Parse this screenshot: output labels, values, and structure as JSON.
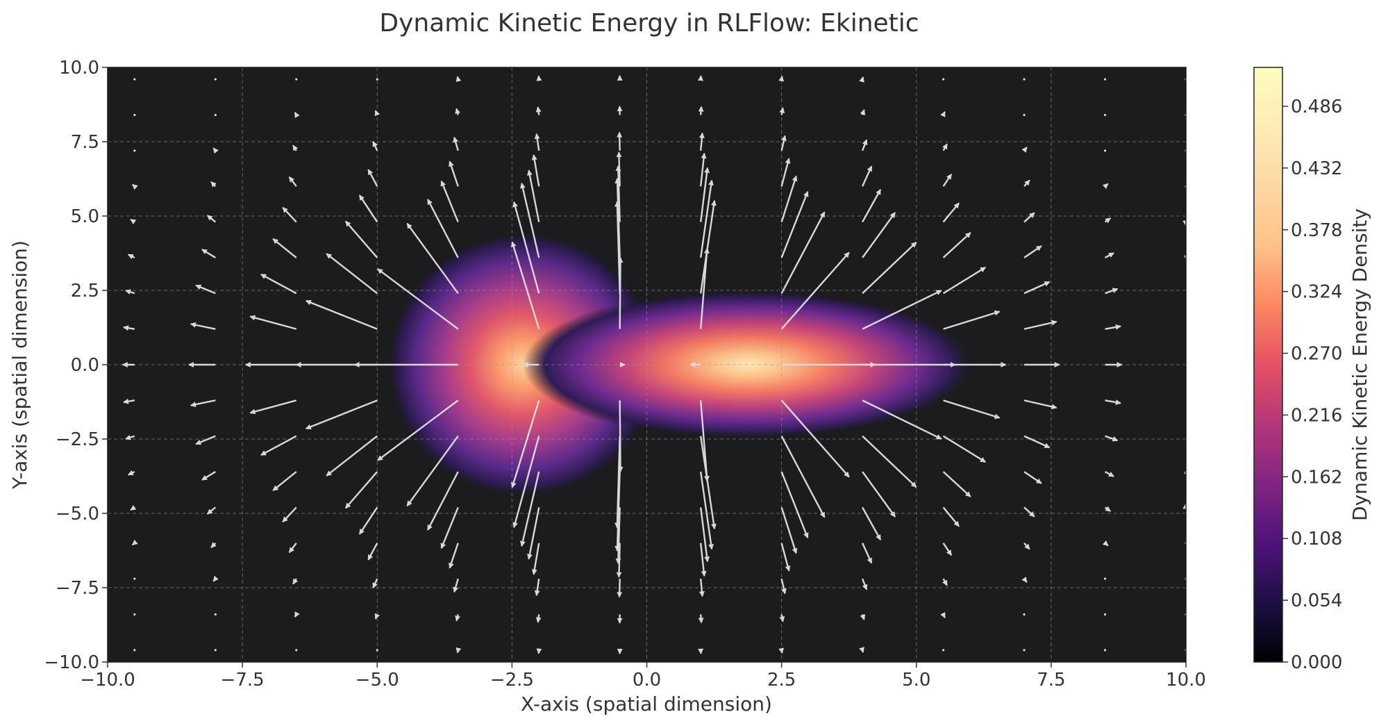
{
  "chart_data": {
    "type": "heatmap",
    "subtype": "contour-fill with quiver vector field",
    "title": "Dynamic Kinetic Energy in RLFlow: Ekinetic",
    "xlabel": "X-axis (spatial dimension)",
    "ylabel": "Y-axis (spatial dimension)",
    "xlim": [
      -10,
      10
    ],
    "ylim": [
      -10,
      10
    ],
    "xticks": [
      -10,
      -7.5,
      -5,
      -2.5,
      0,
      2.5,
      5,
      7.5,
      10
    ],
    "yticks": [
      -10,
      -7.5,
      -5,
      -2.5,
      0,
      2.5,
      5,
      7.5,
      10
    ],
    "xtick_labels": [
      "−10.0",
      "−7.5",
      "−5.0",
      "−2.5",
      "0.0",
      "2.5",
      "5.0",
      "7.5",
      "10.0"
    ],
    "ytick_labels": [
      "−10.0",
      "−7.5",
      "−5.0",
      "−2.5",
      "0.0",
      "2.5",
      "5.0",
      "7.5",
      "10.0"
    ],
    "grid": true,
    "colormap": "magma",
    "background_color": "#1c1b1e",
    "arrow_color": "#d9d9d9",
    "colorbar": {
      "label": "Dynamic Kinetic Energy Density",
      "range": [
        0,
        0.52
      ],
      "ticks": [
        0.0,
        0.054,
        0.108,
        0.162,
        0.216,
        0.27,
        0.324,
        0.378,
        0.432,
        0.486
      ],
      "tick_labels": [
        "0.000",
        "0.054",
        "0.108",
        "0.162",
        "0.216",
        "0.270",
        "0.324",
        "0.378",
        "0.432",
        "0.486"
      ]
    },
    "energy_peaks": [
      {
        "x": -2.3,
        "y": 0.0,
        "sigma_x": 0.9,
        "sigma_y": 1.6,
        "peak": 0.44
      },
      {
        "x": 1.9,
        "y": 0.0,
        "sigma_x": 1.5,
        "sigma_y": 0.9,
        "peak": 0.52
      }
    ],
    "quiver_grid": {
      "x_start": -10,
      "x_end": 10,
      "x_step": 1.5,
      "y_start": -10,
      "y_end": 10,
      "y_step": 1.2
    }
  }
}
